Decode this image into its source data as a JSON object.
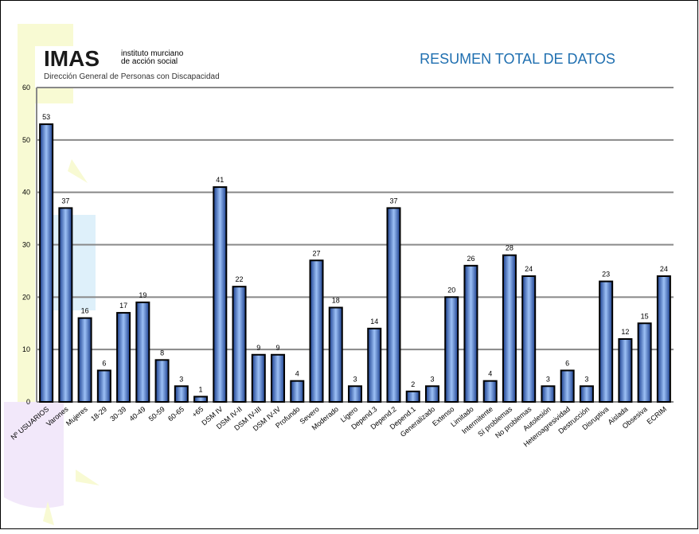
{
  "logo": {
    "mark": "IMAS",
    "line1": "instituto murciano",
    "line2": "de acción social",
    "subtitle": "Dirección General de Personas con Discapacidad"
  },
  "chart_data": {
    "type": "bar",
    "title": "RESUMEN TOTAL DE DATOS",
    "categories": [
      "Nº USUARIOS",
      "Varones",
      "Mujeres",
      "18-29",
      "30-39",
      "40-49",
      "50-59",
      "60-65",
      "+65",
      "DSM IV",
      "DSM IV-II",
      "DSM IV-III",
      "DSM IV-IV",
      "Profundo",
      "Severo",
      "Moderado",
      "Ligero",
      "Depend.3",
      "Depend.2",
      "Depend.1",
      "Generalizado",
      "Extenso",
      "Limitado",
      "Intermitente",
      "Sí problemas",
      "No problemas",
      "Autolesión",
      "Heteroagresividad",
      "Destrucción",
      "Disruptiva",
      "Aislada",
      "Obsesiva",
      "ECRIM"
    ],
    "values": [
      53,
      37,
      16,
      6,
      17,
      19,
      8,
      3,
      1,
      41,
      22,
      9,
      9,
      4,
      27,
      18,
      3,
      14,
      37,
      2,
      3,
      20,
      26,
      4,
      28,
      24,
      3,
      6,
      3,
      23,
      12,
      15,
      24
    ],
    "color": "#3f78d8",
    "ylim": [
      0,
      60
    ],
    "yticks": [
      0,
      10,
      20,
      30,
      40,
      50,
      60
    ],
    "grid": true
  }
}
